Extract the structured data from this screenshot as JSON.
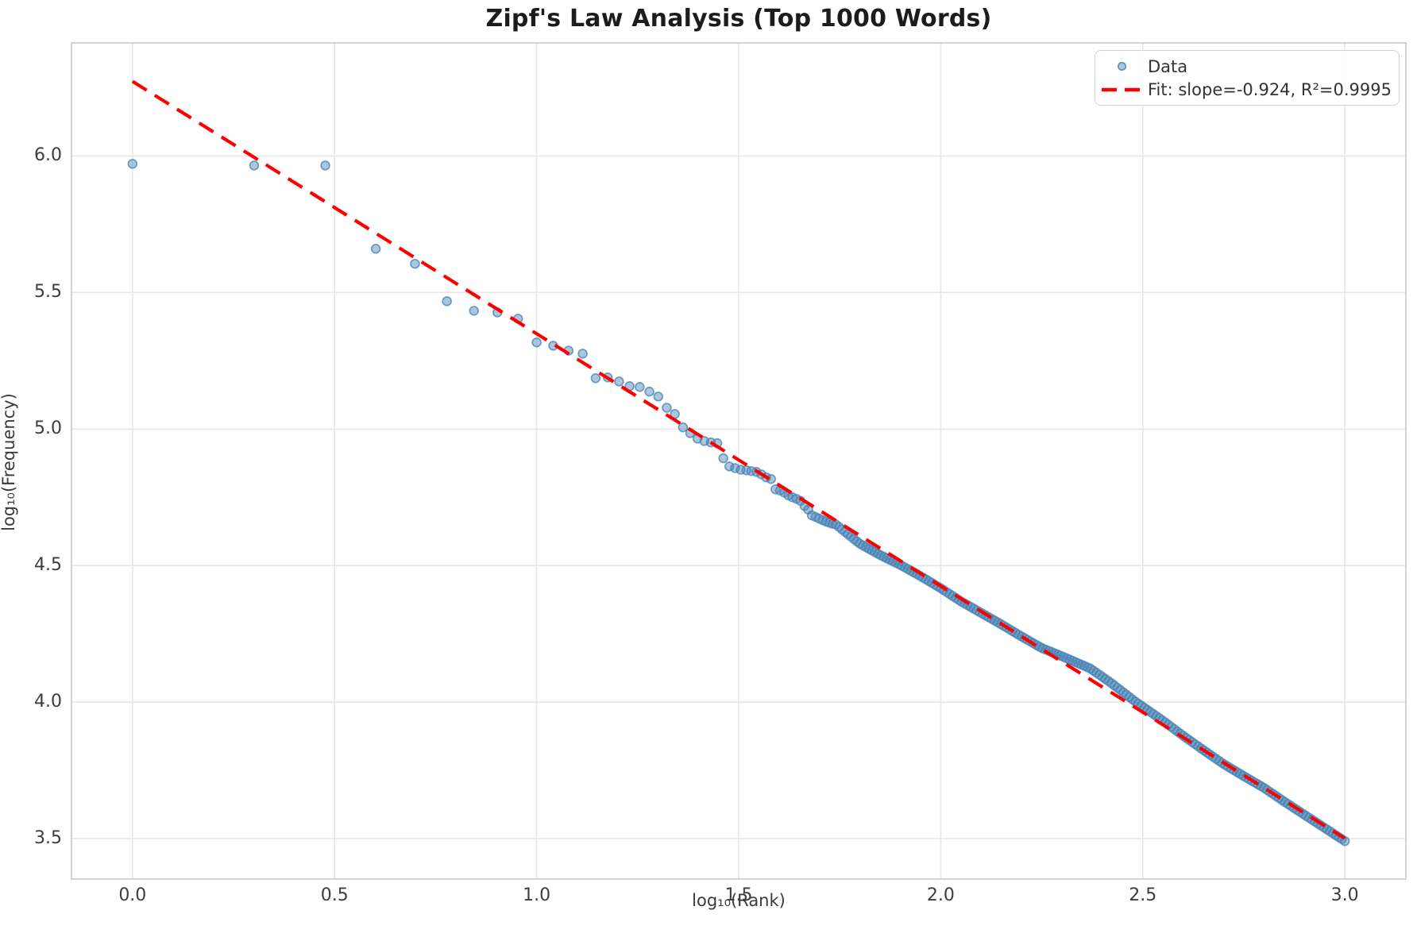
{
  "chart_data": {
    "type": "scatter",
    "title": "Zipf's Law Analysis (Top 1000 Words)",
    "xlabel": "log₁₀(Rank)",
    "ylabel": "log₁₀(Frequency)",
    "xlim": [
      -0.151,
      3.151
    ],
    "ylim": [
      3.352,
      6.414
    ],
    "xticks": [
      0.0,
      0.5,
      1.0,
      1.5,
      2.0,
      2.5,
      3.0
    ],
    "yticks": [
      3.5,
      4.0,
      4.5,
      5.0,
      5.5,
      6.0
    ],
    "grid": true,
    "legend_position": "upper-right",
    "colors": {
      "scatter": "#4682B4",
      "fit_line": "#ff0000",
      "grid": "#e7e7e7",
      "spine": "#c9c9c9",
      "title_text": "#1c1c1c",
      "tick_text": "#3d3d3d"
    },
    "series": [
      {
        "name": "Data",
        "type": "scatter",
        "marker": "circle",
        "points": [
          [
            0.0,
            5.971
          ],
          [
            0.301,
            5.965
          ],
          [
            0.477,
            5.965
          ],
          [
            0.602,
            5.66
          ],
          [
            0.699,
            5.605
          ],
          [
            0.778,
            5.468
          ],
          [
            0.845,
            5.433
          ],
          [
            0.903,
            5.427
          ],
          [
            0.954,
            5.404
          ],
          [
            1.0,
            5.317
          ],
          [
            1.041,
            5.305
          ],
          [
            1.079,
            5.287
          ],
          [
            1.114,
            5.276
          ],
          [
            1.146,
            5.186
          ],
          [
            1.176,
            5.189
          ],
          [
            1.204,
            5.174
          ],
          [
            1.23,
            5.157
          ],
          [
            1.255,
            5.154
          ],
          [
            1.279,
            5.137
          ],
          [
            1.301,
            5.119
          ],
          [
            1.322,
            5.078
          ],
          [
            1.342,
            5.055
          ],
          [
            1.362,
            5.006
          ],
          [
            1.38,
            4.985
          ],
          [
            1.398,
            4.965
          ],
          [
            1.415,
            4.956
          ],
          [
            1.431,
            4.951
          ],
          [
            1.447,
            4.948
          ],
          [
            1.462,
            4.893
          ],
          [
            1.477,
            4.863
          ],
          [
            1.491,
            4.857
          ],
          [
            1.505,
            4.851
          ],
          [
            1.519,
            4.849
          ],
          [
            1.531,
            4.846
          ],
          [
            1.544,
            4.843
          ],
          [
            1.556,
            4.834
          ],
          [
            1.568,
            4.823
          ],
          [
            1.58,
            4.817
          ],
          [
            1.591,
            4.779
          ],
          [
            1.602,
            4.775
          ],
          [
            1.613,
            4.767
          ],
          [
            1.623,
            4.757
          ],
          [
            1.633,
            4.75
          ],
          [
            1.643,
            4.744
          ],
          [
            1.653,
            4.737
          ],
          [
            1.663,
            4.718
          ],
          [
            1.672,
            4.705
          ],
          [
            1.681,
            4.684
          ],
          [
            1.69,
            4.678
          ],
          [
            1.699,
            4.672
          ],
          [
            1.708,
            4.666
          ],
          [
            1.716,
            4.661
          ],
          [
            1.724,
            4.657
          ],
          [
            1.732,
            4.653
          ],
          [
            1.74,
            4.651
          ]
        ],
        "dense_tail": {
          "note": "ranks 56-1000 form a continuous overlapping band hugging the fit line down to (3.0, 3.49)",
          "x_from": 1.748,
          "x_to": 3.0,
          "count": 170,
          "deviation_from_fit": [
            [
              1.748,
              -0.016
            ],
            [
              1.76,
              -0.02
            ],
            [
              1.8,
              -0.03
            ],
            [
              1.85,
              -0.025
            ],
            [
              1.9,
              -0.015
            ],
            [
              1.95,
              -0.01
            ],
            [
              2.0,
              -0.008
            ],
            [
              2.05,
              -0.01
            ],
            [
              2.1,
              -0.006
            ],
            [
              2.15,
              -0.002
            ],
            [
              2.2,
              0.0
            ],
            [
              2.25,
              0.004
            ],
            [
              2.3,
              0.02
            ],
            [
              2.37,
              0.04
            ],
            [
              2.42,
              0.035
            ],
            [
              2.48,
              0.022
            ],
            [
              2.55,
              0.015
            ],
            [
              2.6,
              0.006
            ],
            [
              2.65,
              0.0
            ],
            [
              2.7,
              -0.005
            ],
            [
              2.75,
              -0.003
            ],
            [
              2.8,
              0.0
            ],
            [
              2.85,
              -0.004
            ],
            [
              2.9,
              -0.006
            ],
            [
              2.95,
              -0.008
            ],
            [
              3.0,
              -0.01
            ]
          ]
        }
      },
      {
        "name": "Fit: slope=-0.924, R²=0.9995",
        "type": "line",
        "style": "dashed",
        "slope": -0.924,
        "intercept": 6.273,
        "r_squared": 0.9995,
        "x_range": [
          0.0,
          3.0
        ]
      }
    ],
    "legend": {
      "entries": [
        {
          "label": "Data"
        },
        {
          "label": "Fit: slope=-0.924, R²=0.9995"
        }
      ]
    }
  }
}
